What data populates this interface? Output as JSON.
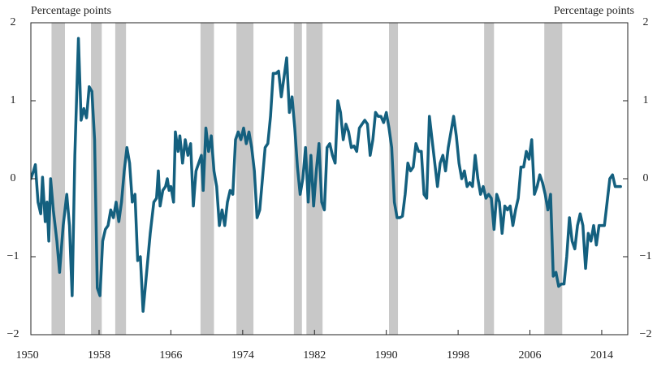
{
  "chart_data": {
    "type": "line",
    "y_axis_label": "Percentage points",
    "y2_axis_label": "Percentage points",
    "xlim": [
      1950.4,
      2016.9
    ],
    "xticks": [
      1950,
      1958,
      1966,
      1974,
      1982,
      1990,
      1998,
      2006,
      2014
    ],
    "ylim": [
      -2,
      2
    ],
    "yticks": [
      {
        "value": -2,
        "label": "−2"
      },
      {
        "value": -1,
        "label": "−1"
      },
      0,
      1,
      2
    ],
    "y2lim": [
      -2,
      2
    ],
    "y2ticks": [
      {
        "value": -2,
        "label": "−2"
      },
      {
        "value": -1,
        "label": "−1"
      },
      0,
      1,
      2
    ],
    "shaded_periods": [
      [
        1952.7,
        1954.2
      ],
      [
        1957.1,
        1958.3
      ],
      [
        1959.8,
        1961.0
      ],
      [
        1969.3,
        1970.8
      ],
      [
        1973.3,
        1975.2
      ],
      [
        1979.7,
        1980.6
      ],
      [
        1981.1,
        1982.9
      ],
      [
        1990.3,
        1991.3
      ],
      [
        2000.9,
        2002.0
      ],
      [
        2007.6,
        2009.6
      ]
    ],
    "shade_color": "#c8c8c8",
    "x": [
      1950.4,
      1950.7,
      1950.9,
      1951.2,
      1951.5,
      1951.7,
      1952.0,
      1952.2,
      1952.4,
      1952.6,
      1952.9,
      1953.3,
      1953.6,
      1954.0,
      1954.4,
      1954.7,
      1955.0,
      1955.3,
      1955.7,
      1956.0,
      1956.3,
      1956.6,
      1956.9,
      1957.2,
      1957.5,
      1957.8,
      1958.1,
      1958.4,
      1958.7,
      1959.0,
      1959.3,
      1959.6,
      1959.9,
      1960.2,
      1960.5,
      1960.8,
      1961.1,
      1961.4,
      1961.7,
      1962.0,
      1962.3,
      1962.6,
      1962.9,
      1963.3,
      1963.7,
      1964.1,
      1964.4,
      1964.6,
      1964.8,
      1965.1,
      1965.4,
      1965.6,
      1965.8,
      1966.0,
      1966.3,
      1966.5,
      1966.8,
      1967.0,
      1967.3,
      1967.6,
      1967.9,
      1968.2,
      1968.5,
      1968.8,
      1969.1,
      1969.4,
      1969.6,
      1969.9,
      1970.2,
      1970.5,
      1970.8,
      1971.1,
      1971.4,
      1971.7,
      1972.0,
      1972.3,
      1972.6,
      1972.9,
      1973.2,
      1973.5,
      1973.8,
      1974.1,
      1974.4,
      1974.7,
      1975.0,
      1975.3,
      1975.6,
      1975.9,
      1976.2,
      1976.5,
      1976.8,
      1977.1,
      1977.4,
      1977.7,
      1978.0,
      1978.3,
      1978.6,
      1978.9,
      1979.2,
      1979.5,
      1979.8,
      1980.1,
      1980.4,
      1980.7,
      1981.0,
      1981.3,
      1981.6,
      1981.9,
      1982.2,
      1982.5,
      1982.8,
      1983.1,
      1983.4,
      1983.7,
      1984.0,
      1984.3,
      1984.6,
      1984.9,
      1985.2,
      1985.5,
      1985.8,
      1986.1,
      1986.4,
      1986.7,
      1987.0,
      1987.3,
      1987.6,
      1987.9,
      1988.2,
      1988.5,
      1988.8,
      1989.1,
      1989.4,
      1989.7,
      1990.0,
      1990.3,
      1990.6,
      1990.9,
      1991.2,
      1991.5,
      1991.8,
      1992.1,
      1992.4,
      1992.7,
      1993.0,
      1993.3,
      1993.6,
      1993.9,
      1994.2,
      1994.5,
      1994.8,
      1995.1,
      1995.4,
      1995.7,
      1996.0,
      1996.3,
      1996.6,
      1996.9,
      1997.2,
      1997.5,
      1997.8,
      1998.1,
      1998.4,
      1998.7,
      1999.0,
      1999.3,
      1999.6,
      1999.9,
      2000.2,
      2000.5,
      2000.8,
      2001.1,
      2001.4,
      2001.7,
      2002.0,
      2002.3,
      2002.6,
      2002.9,
      2003.2,
      2003.5,
      2003.8,
      2004.1,
      2004.4,
      2004.7,
      2005.0,
      2005.3,
      2005.6,
      2005.9,
      2006.2,
      2006.5,
      2006.8,
      2007.1,
      2007.4,
      2007.7,
      2008.0,
      2008.3,
      2008.6,
      2008.9,
      2009.2,
      2009.5,
      2009.8,
      2010.1,
      2010.4,
      2010.7,
      2011.0,
      2011.3,
      2011.6,
      2011.9,
      2012.2,
      2012.5,
      2012.8,
      2013.1,
      2013.4,
      2013.7,
      2014.0,
      2014.3,
      2014.6,
      2014.9,
      2015.2,
      2015.5,
      2015.8,
      2016.1
    ],
    "series": [
      {
        "color": "#14607f",
        "values": [
          0,
          0.1,
          0.18,
          -0.3,
          -0.45,
          0.02,
          -0.55,
          -0.3,
          -0.8,
          0,
          -0.4,
          -0.8,
          -1.2,
          -0.6,
          -0.2,
          -0.6,
          -1.5,
          0.3,
          1.8,
          0.75,
          0.9,
          0.78,
          1.18,
          1.12,
          0.5,
          -1.4,
          -1.5,
          -0.8,
          -0.65,
          -0.6,
          -0.4,
          -0.5,
          -0.3,
          -0.55,
          -0.3,
          0.1,
          0.4,
          0.2,
          -0.3,
          -0.2,
          -1.05,
          -1.0,
          -1.7,
          -1.2,
          -0.7,
          -0.3,
          -0.25,
          0.1,
          -0.35,
          -0.15,
          -0.1,
          0,
          -0.15,
          -0.1,
          -0.3,
          0.6,
          0.35,
          0.55,
          0.2,
          0.5,
          0.3,
          0.45,
          -0.35,
          0.1,
          0.2,
          0.3,
          -0.15,
          0.65,
          0.35,
          0.55,
          0.1,
          -0.1,
          -0.6,
          -0.4,
          -0.6,
          -0.3,
          -0.15,
          -0.2,
          0.5,
          0.6,
          0.5,
          0.65,
          0.45,
          0.6,
          0.4,
          0.1,
          -0.5,
          -0.4,
          0,
          0.4,
          0.45,
          0.8,
          1.35,
          1.35,
          1.38,
          1.05,
          1.3,
          1.55,
          0.85,
          1.05,
          0.65,
          0.15,
          -0.2,
          0,
          0.4,
          -0.3,
          0.3,
          -0.35,
          0.1,
          0.45,
          -0.3,
          -0.4,
          0.4,
          0.45,
          0.3,
          0.2,
          1.0,
          0.85,
          0.5,
          0.7,
          0.6,
          0.4,
          0.42,
          0.35,
          0.65,
          0.7,
          0.75,
          0.7,
          0.3,
          0.5,
          0.85,
          0.8,
          0.8,
          0.72,
          0.85,
          0.65,
          0.4,
          -0.3,
          -0.5,
          -0.5,
          -0.48,
          -0.2,
          0.2,
          0.1,
          0.15,
          0.45,
          0.35,
          0.35,
          -0.2,
          -0.25,
          0.8,
          0.5,
          0.2,
          -0.1,
          0.2,
          0.3,
          0.1,
          0.4,
          0.6,
          0.8,
          0.55,
          0.2,
          0,
          0.1,
          -0.1,
          -0.05,
          -0.1,
          0.3,
          0,
          -0.2,
          -0.1,
          -0.25,
          -0.2,
          -0.25,
          -0.65,
          -0.2,
          -0.3,
          -0.7,
          -0.35,
          -0.4,
          -0.35,
          -0.6,
          -0.4,
          -0.25,
          0.15,
          0.15,
          0.35,
          0.25,
          0.5,
          -0.2,
          -0.1,
          0.05,
          -0.05,
          -0.2,
          -0.4,
          -0.2,
          -1.25,
          -1.2,
          -1.38,
          -1.35,
          -1.35,
          -1.0,
          -0.5,
          -0.8,
          -0.9,
          -0.6,
          -0.45,
          -0.6,
          -1.15,
          -0.7,
          -0.8,
          -0.6,
          -0.85,
          -0.6,
          -0.6,
          -0.6,
          -0.3,
          0,
          0.05,
          -0.1,
          -0.1,
          -0.1
        ]
      }
    ]
  }
}
